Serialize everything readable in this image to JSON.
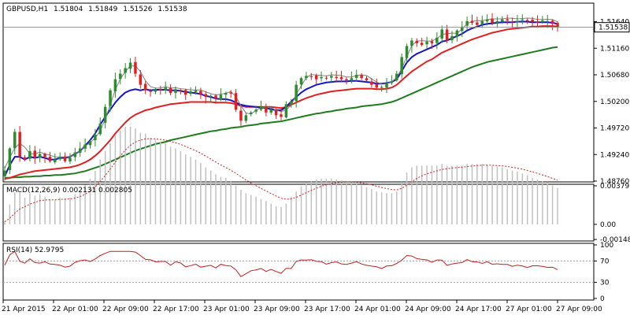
{
  "colors": {
    "up": "#2e8b2e",
    "down": "#e02020",
    "ma_fast": "#1515c8",
    "ma_mid": "#e02020",
    "ma_slow": "#1e7b1e",
    "thin_line": "#808080",
    "hist": "#c0c0c0",
    "signal": "#d02020",
    "rsi": "#c02020",
    "grid": "#a0a0a0",
    "price_tag_bg": "#ffffff"
  },
  "chart_data": [
    {
      "type": "candlestick",
      "header": {
        "symbol_tf": "GBPUSD,H1",
        "o": "1.51804",
        "h": "1.51849",
        "l": "1.51526",
        "c": "1.51538"
      },
      "current_price_label": "1.51538",
      "current_price": 1.51538,
      "ylim": [
        1.4876,
        1.5196
      ],
      "yticks": [
        "1.48760",
        "1.49240",
        "1.49720",
        "1.50200",
        "1.50680",
        "1.51160",
        "1.51640"
      ],
      "x_labels": [
        "21 Apr 2015",
        "22 Apr 01:00",
        "22 Apr 09:00",
        "22 Apr 17:00",
        "23 Apr 01:00",
        "23 Apr 09:00",
        "23 Apr 17:00",
        "24 Apr 01:00",
        "24 Apr 09:00",
        "24 Apr 17:00",
        "27 Apr 01:00",
        "27 Apr 09:00"
      ],
      "closes": [
        1.4895,
        1.4935,
        1.4965,
        1.492,
        1.4915,
        1.493,
        1.4918,
        1.4925,
        1.492,
        1.4912,
        1.4915,
        1.492,
        1.4912,
        1.4918,
        1.4928,
        1.4935,
        1.4942,
        1.4948,
        1.496,
        1.498,
        1.501,
        1.504,
        1.506,
        1.507,
        1.508,
        1.509,
        1.507,
        1.505,
        1.504,
        1.5038,
        1.5042,
        1.504,
        1.5045,
        1.5035,
        1.5042,
        1.504,
        1.5032,
        1.5038,
        1.504,
        1.5032,
        1.5028,
        1.503,
        1.5025,
        1.5032,
        1.5035,
        1.5034,
        1.5005,
        1.4985,
        1.4995,
        1.5,
        1.5005,
        1.501,
        1.5,
        1.5005,
        1.4995,
        1.4992,
        1.5015,
        1.502,
        1.505,
        1.5062,
        1.5066,
        1.5065,
        1.506,
        1.5064,
        1.5062,
        1.5066,
        1.5062,
        1.506,
        1.5058,
        1.5062,
        1.5068,
        1.5062,
        1.5058,
        1.505,
        1.5045,
        1.5046,
        1.5052,
        1.5056,
        1.507,
        1.51,
        1.512,
        1.513,
        1.5125,
        1.5122,
        1.5128,
        1.5125,
        1.5135,
        1.515,
        1.513,
        1.5138,
        1.5148,
        1.5155,
        1.5165,
        1.5162,
        1.5158,
        1.5165,
        1.5168,
        1.5162,
        1.5165,
        1.5168,
        1.5166,
        1.5164,
        1.5165,
        1.5168,
        1.5166,
        1.5164,
        1.5162,
        1.5166,
        1.5165,
        1.516,
        1.5154
      ],
      "ma_fast": [
        1.4885,
        1.4905,
        1.492,
        1.492,
        1.4915,
        1.492,
        1.4918,
        1.492,
        1.4918,
        1.4915,
        1.4915,
        1.4918,
        1.4918,
        1.492,
        1.4925,
        1.493,
        1.494,
        1.495,
        1.4962,
        1.4978,
        1.4992,
        1.5005,
        1.5018,
        1.5028,
        1.5036,
        1.504,
        1.5042,
        1.504,
        1.5042,
        1.504,
        1.5041,
        1.5041,
        1.5041,
        1.504,
        1.504,
        1.5039,
        1.5037,
        1.5036,
        1.5035,
        1.5033,
        1.503,
        1.5028,
        1.5025,
        1.5024,
        1.5024,
        1.5022,
        1.5018,
        1.5014,
        1.5012,
        1.5011,
        1.501,
        1.5009,
        1.5008,
        1.5006,
        1.5004,
        1.5004,
        1.501,
        1.502,
        1.5028,
        1.5036,
        1.5042,
        1.5046,
        1.505,
        1.5052,
        1.5054,
        1.5055,
        1.5056,
        1.5056,
        1.5056,
        1.5057,
        1.5057,
        1.5056,
        1.5055,
        1.5054,
        1.5052,
        1.5052,
        1.5053,
        1.5055,
        1.506,
        1.5075,
        1.509,
        1.51,
        1.5106,
        1.511,
        1.5114,
        1.5118,
        1.5122,
        1.5128,
        1.513,
        1.5134,
        1.5138,
        1.5142,
        1.5148,
        1.5152,
        1.5155,
        1.5158,
        1.516,
        1.5161,
        1.5162,
        1.5163,
        1.5163,
        1.5163,
        1.5164,
        1.5164,
        1.5164,
        1.5163,
        1.5163,
        1.5163,
        1.5163,
        1.5162,
        1.516
      ],
      "ma_mid": [
        1.488,
        1.4882,
        1.4885,
        1.4888,
        1.489,
        1.4892,
        1.4894,
        1.4895,
        1.4896,
        1.4897,
        1.4898,
        1.4899,
        1.49,
        1.4901,
        1.4903,
        1.4906,
        1.491,
        1.4915,
        1.4922,
        1.493,
        1.494,
        1.495,
        1.4962,
        1.4972,
        1.4982,
        1.499,
        1.4996,
        1.5,
        1.5004,
        1.5006,
        1.5009,
        1.5011,
        1.5013,
        1.5015,
        1.5016,
        1.5017,
        1.5018,
        1.5019,
        1.5019,
        1.5019,
        1.5019,
        1.5019,
        1.5018,
        1.5018,
        1.5018,
        1.5017,
        1.5015,
        1.5012,
        1.501,
        1.501,
        1.501,
        1.501,
        1.501,
        1.501,
        1.5009,
        1.5008,
        1.501,
        1.5014,
        1.5018,
        1.5022,
        1.5026,
        1.5029,
        1.5032,
        1.5034,
        1.5036,
        1.5038,
        1.5039,
        1.504,
        1.5041,
        1.5042,
        1.5043,
        1.5043,
        1.5043,
        1.5043,
        1.5042,
        1.5042,
        1.5043,
        1.5045,
        1.505,
        1.5058,
        1.5066,
        1.5074,
        1.508,
        1.5086,
        1.5092,
        1.5096,
        1.5102,
        1.5108,
        1.5112,
        1.5116,
        1.512,
        1.5124,
        1.5128,
        1.5132,
        1.5135,
        1.5138,
        1.5141,
        1.5144,
        1.5146,
        1.5148,
        1.515,
        1.5151,
        1.5152,
        1.5153,
        1.5154,
        1.5155,
        1.5155,
        1.5156,
        1.5156,
        1.5156,
        1.5155
      ],
      "ma_slow": [
        1.4882,
        1.4882,
        1.4883,
        1.4883,
        1.4884,
        1.4884,
        1.4885,
        1.4885,
        1.4886,
        1.4886,
        1.4887,
        1.4887,
        1.4888,
        1.4889,
        1.489,
        1.4892,
        1.4894,
        1.4897,
        1.49,
        1.4903,
        1.4907,
        1.4911,
        1.4915,
        1.4919,
        1.4923,
        1.4927,
        1.4931,
        1.4934,
        1.4937,
        1.494,
        1.4943,
        1.4945,
        1.4947,
        1.495,
        1.4952,
        1.4954,
        1.4956,
        1.4958,
        1.496,
        1.4962,
        1.4964,
        1.4966,
        1.4967,
        1.4969,
        1.497,
        1.4972,
        1.4973,
        1.4974,
        1.4976,
        1.4977,
        1.4978,
        1.498,
        1.4981,
        1.4982,
        1.4983,
        1.4984,
        1.4986,
        1.4988,
        1.499,
        1.4992,
        1.4994,
        1.4996,
        1.4998,
        1.4999,
        1.5001,
        1.5002,
        1.5004,
        1.5005,
        1.5007,
        1.5008,
        1.5009,
        1.5011,
        1.5012,
        1.5013,
        1.5014,
        1.5015,
        1.5017,
        1.5019,
        1.5022,
        1.5026,
        1.503,
        1.5034,
        1.5038,
        1.5042,
        1.5046,
        1.505,
        1.5054,
        1.5058,
        1.5062,
        1.5066,
        1.507,
        1.5074,
        1.5078,
        1.5082,
        1.5085,
        1.5088,
        1.5091,
        1.5093,
        1.5095,
        1.5097,
        1.5099,
        1.5101,
        1.5103,
        1.5105,
        1.5107,
        1.5109,
        1.5111,
        1.5113,
        1.5115,
        1.5117,
        1.5118
      ]
    },
    {
      "type": "histogram",
      "title": "MACD(12,26,9) 0.002131 0.002805",
      "ylim": [
        -0.00148,
        0.00379
      ],
      "ytick_labels": [
        "0.003793",
        "0.00",
        "-0.001486"
      ],
      "ytick_values": [
        0.003793,
        0,
        -0.001486
      ]
    },
    {
      "type": "line",
      "title": "RSI(14) 52.9795",
      "ylim": [
        0,
        100
      ],
      "ytick_labels": [
        "100",
        "70",
        "30",
        "0"
      ],
      "ytick_values": [
        100,
        70,
        30,
        0
      ],
      "levels": [
        70,
        30
      ]
    }
  ]
}
